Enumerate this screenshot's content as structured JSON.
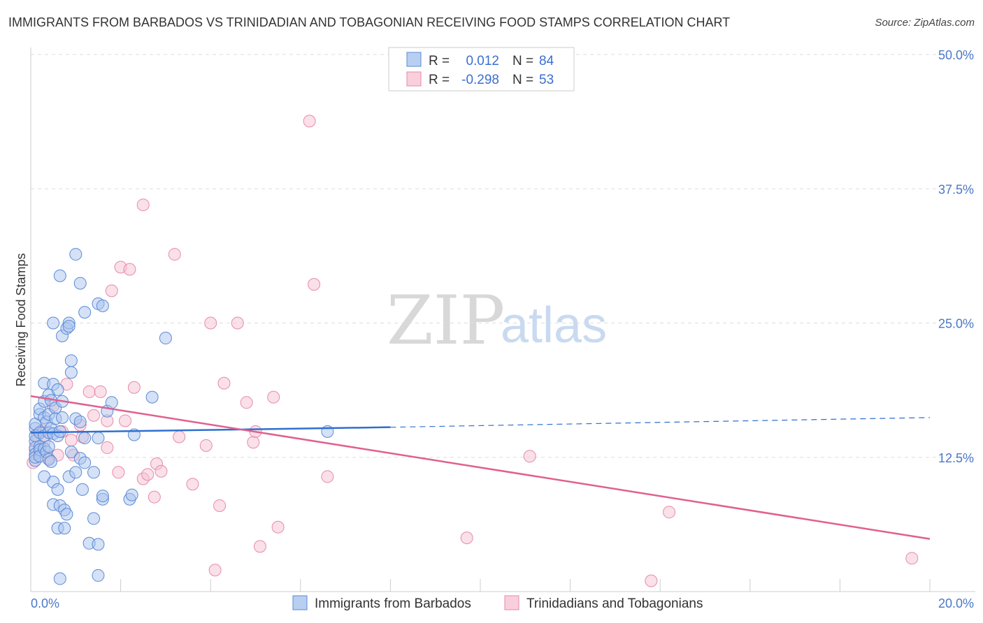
{
  "title": "IMMIGRANTS FROM BARBADOS VS TRINIDADIAN AND TOBAGONIAN RECEIVING FOOD STAMPS CORRELATION CHART",
  "source": "Source: ZipAtlas.com",
  "watermark": {
    "zip": "ZIP",
    "atlas": "atlas"
  },
  "legend_box": {
    "rows": [
      {
        "r_label": "R =",
        "r_value": "0.012",
        "n_label": "N =",
        "n_value": "84"
      },
      {
        "r_label": "R =",
        "r_value": "-0.298",
        "n_label": "N =",
        "n_value": "53"
      }
    ]
  },
  "bottom_legend": [
    "Immigrants from Barbados",
    "Trinidadians and Tobagonians"
  ],
  "colors": {
    "blue_fill": "#a9c4ee",
    "blue_stroke": "#5b8ad6",
    "blue_line": "#2f6fd0",
    "pink_fill": "#f6c1d2",
    "pink_stroke": "#e88aaa",
    "pink_line": "#e0608f",
    "grid": "#dddddd",
    "tick_text": "#4a78c8"
  },
  "chart_data": {
    "type": "scatter",
    "title": "IMMIGRANTS FROM BARBADOS VS TRINIDADIAN AND TOBAGONIAN RECEIVING FOOD STAMPS CORRELATION CHART",
    "xlabel": "",
    "ylabel": "Receiving Food Stamps",
    "xlim": [
      0,
      20
    ],
    "ylim": [
      0,
      50
    ],
    "x_tick_labels": [
      "0.0%",
      "20.0%"
    ],
    "y_ticks": [
      12.5,
      25.0,
      37.5,
      50.0
    ],
    "y_tick_labels": [
      "12.5%",
      "25.0%",
      "37.5%",
      "50.0%"
    ],
    "grid": true,
    "legend_placement": "top-center",
    "series": [
      {
        "name": "Immigrants from Barbados",
        "r": 0.012,
        "n": 84,
        "trend": {
          "x": [
            0,
            8
          ],
          "y": [
            14.8,
            15.3
          ],
          "dashed_to": [
            20,
            16.2
          ]
        },
        "points": [
          [
            0.1,
            15.2
          ],
          [
            0.1,
            15.6
          ],
          [
            0.1,
            14.0
          ],
          [
            0.1,
            13.4
          ],
          [
            0.1,
            12.8
          ],
          [
            0.1,
            12.2
          ],
          [
            0.1,
            12.5
          ],
          [
            0.1,
            14.5
          ],
          [
            0.2,
            16.5
          ],
          [
            0.2,
            17.0
          ],
          [
            0.2,
            13.5
          ],
          [
            0.2,
            13.2
          ],
          [
            0.2,
            12.6
          ],
          [
            0.2,
            14.8
          ],
          [
            0.3,
            19.4
          ],
          [
            0.3,
            17.7
          ],
          [
            0.3,
            16.2
          ],
          [
            0.3,
            14.5
          ],
          [
            0.3,
            13.3
          ],
          [
            0.3,
            10.7
          ],
          [
            0.35,
            15.8
          ],
          [
            0.35,
            13.0
          ],
          [
            0.4,
            18.3
          ],
          [
            0.4,
            16.5
          ],
          [
            0.4,
            14.8
          ],
          [
            0.4,
            13.5
          ],
          [
            0.4,
            12.3
          ],
          [
            0.45,
            17.8
          ],
          [
            0.45,
            15.2
          ],
          [
            0.45,
            12.1
          ],
          [
            0.5,
            25.0
          ],
          [
            0.5,
            19.3
          ],
          [
            0.5,
            14.7
          ],
          [
            0.5,
            10.2
          ],
          [
            0.5,
            8.1
          ],
          [
            0.55,
            17.1
          ],
          [
            0.55,
            16.1
          ],
          [
            0.6,
            18.8
          ],
          [
            0.6,
            14.5
          ],
          [
            0.6,
            9.5
          ],
          [
            0.6,
            5.9
          ],
          [
            0.65,
            29.4
          ],
          [
            0.65,
            14.9
          ],
          [
            0.65,
            8.0
          ],
          [
            0.65,
            1.2
          ],
          [
            0.7,
            23.8
          ],
          [
            0.7,
            17.7
          ],
          [
            0.7,
            16.2
          ],
          [
            0.75,
            7.6
          ],
          [
            0.75,
            5.9
          ],
          [
            0.8,
            24.5
          ],
          [
            0.8,
            7.2
          ],
          [
            0.85,
            25.0
          ],
          [
            0.85,
            24.7
          ],
          [
            0.85,
            10.7
          ],
          [
            0.9,
            21.5
          ],
          [
            0.9,
            20.4
          ],
          [
            0.9,
            13.0
          ],
          [
            1.0,
            31.4
          ],
          [
            1.0,
            16.1
          ],
          [
            1.0,
            11.1
          ],
          [
            1.1,
            28.7
          ],
          [
            1.1,
            15.8
          ],
          [
            1.1,
            12.4
          ],
          [
            1.15,
            9.5
          ],
          [
            1.2,
            26.0
          ],
          [
            1.2,
            14.3
          ],
          [
            1.2,
            12.0
          ],
          [
            1.3,
            4.5
          ],
          [
            1.4,
            6.8
          ],
          [
            1.4,
            11.1
          ],
          [
            1.5,
            26.8
          ],
          [
            1.5,
            14.3
          ],
          [
            1.5,
            4.4
          ],
          [
            1.5,
            1.5
          ],
          [
            1.6,
            26.6
          ],
          [
            1.6,
            8.6
          ],
          [
            1.6,
            8.9
          ],
          [
            1.7,
            16.8
          ],
          [
            1.8,
            17.6
          ],
          [
            2.2,
            8.6
          ],
          [
            2.25,
            9.0
          ],
          [
            2.3,
            14.6
          ],
          [
            2.7,
            18.1
          ],
          [
            3.0,
            23.6
          ],
          [
            6.6,
            14.9
          ]
        ]
      },
      {
        "name": "Trinidadians and Tobagonians",
        "r": -0.298,
        "n": 53,
        "trend": {
          "x": [
            0,
            20
          ],
          "y": [
            18.2,
            4.9
          ]
        },
        "points": [
          [
            0.05,
            12.0
          ],
          [
            0.1,
            13.2
          ],
          [
            0.15,
            14.5
          ],
          [
            0.2,
            13.0
          ],
          [
            0.25,
            15.0
          ],
          [
            0.3,
            14.0
          ],
          [
            0.4,
            12.4
          ],
          [
            0.5,
            17.3
          ],
          [
            0.6,
            12.7
          ],
          [
            0.7,
            14.9
          ],
          [
            0.8,
            19.3
          ],
          [
            0.9,
            14.1
          ],
          [
            0.95,
            12.7
          ],
          [
            1.1,
            15.5
          ],
          [
            1.15,
            14.4
          ],
          [
            1.3,
            18.6
          ],
          [
            1.4,
            16.4
          ],
          [
            1.55,
            18.6
          ],
          [
            1.7,
            15.9
          ],
          [
            1.7,
            13.4
          ],
          [
            1.8,
            28.0
          ],
          [
            1.95,
            11.1
          ],
          [
            2.0,
            30.2
          ],
          [
            2.1,
            15.9
          ],
          [
            2.2,
            30.0
          ],
          [
            2.3,
            19.0
          ],
          [
            2.5,
            36.0
          ],
          [
            2.5,
            10.5
          ],
          [
            2.6,
            10.9
          ],
          [
            2.75,
            8.8
          ],
          [
            2.8,
            11.9
          ],
          [
            2.9,
            11.2
          ],
          [
            3.2,
            31.4
          ],
          [
            3.3,
            14.4
          ],
          [
            3.6,
            10.0
          ],
          [
            3.9,
            13.6
          ],
          [
            4.0,
            25.0
          ],
          [
            4.1,
            2.0
          ],
          [
            4.2,
            8.0
          ],
          [
            4.3,
            19.4
          ],
          [
            4.6,
            25.0
          ],
          [
            4.8,
            17.6
          ],
          [
            4.95,
            13.9
          ],
          [
            5.0,
            14.9
          ],
          [
            5.1,
            4.2
          ],
          [
            5.4,
            18.1
          ],
          [
            5.5,
            6.0
          ],
          [
            6.2,
            43.8
          ],
          [
            6.3,
            28.6
          ],
          [
            6.6,
            10.7
          ],
          [
            9.7,
            5.0
          ],
          [
            11.1,
            12.6
          ],
          [
            13.8,
            1.0
          ],
          [
            14.2,
            7.4
          ],
          [
            19.6,
            3.1
          ]
        ]
      }
    ]
  }
}
